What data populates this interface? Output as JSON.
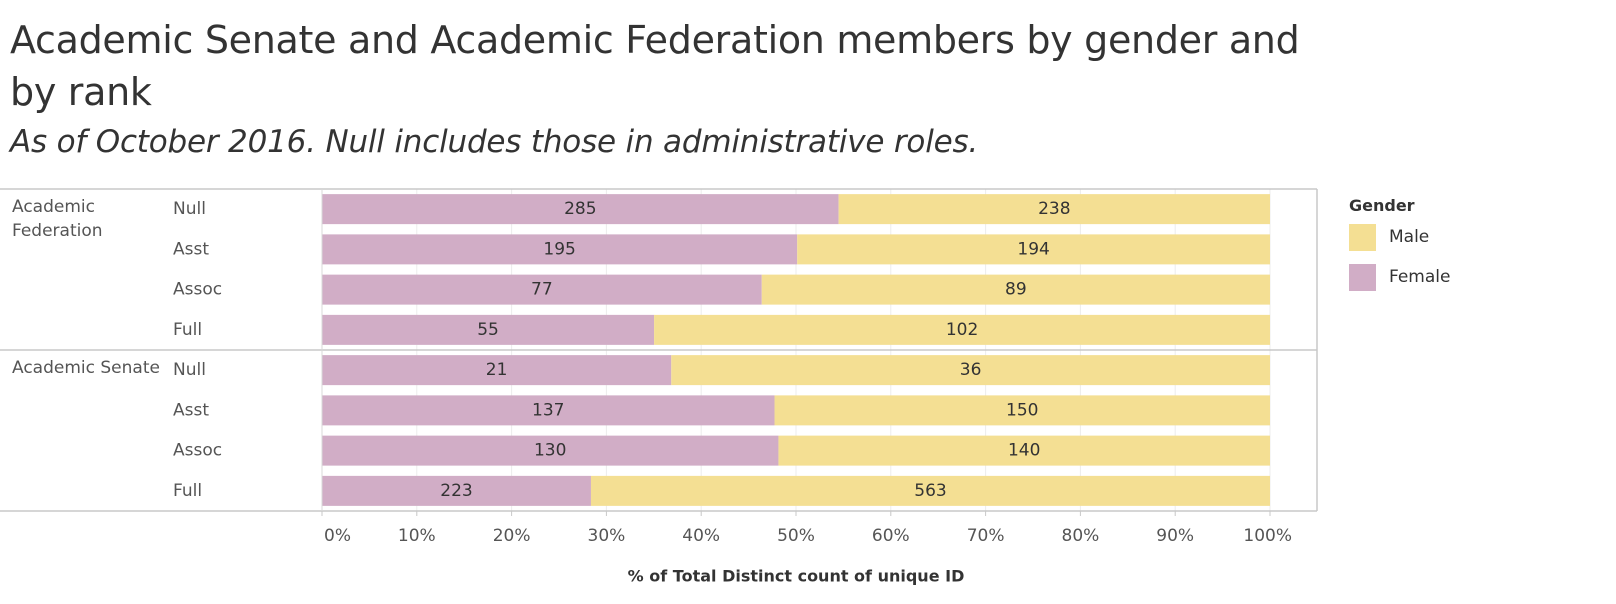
{
  "title": "Academic Senate and Academic Federation members by gender and by rank",
  "subtitle": "As of October 2016. Null includes those in administrative roles.",
  "colors": {
    "female": "#d1adc6",
    "male": "#f4df93",
    "text": "#333333",
    "grid": "#dddddd",
    "border": "#c8c8c8"
  },
  "legend": {
    "title": "Gender",
    "items": [
      {
        "label": "Male",
        "color": "#f4df93"
      },
      {
        "label": "Female",
        "color": "#d1adc6"
      }
    ]
  },
  "chart_data": {
    "type": "bar",
    "orientation": "horizontal",
    "stacked": "percent",
    "xlabel": "% of Total Distinct count of unique ID",
    "xlim": [
      0,
      100
    ],
    "x_ticks": [
      "0%",
      "10%",
      "20%",
      "30%",
      "40%",
      "50%",
      "60%",
      "70%",
      "80%",
      "90%",
      "100%"
    ],
    "series": [
      {
        "name": "Female",
        "key": "female"
      },
      {
        "name": "Male",
        "key": "male"
      }
    ],
    "groups": [
      {
        "name": "Academic Federation",
        "label_lines": [
          "Academic",
          "Federation"
        ],
        "rows": [
          {
            "rank": "Null",
            "female": 285,
            "male": 238
          },
          {
            "rank": "Asst",
            "female": 195,
            "male": 194
          },
          {
            "rank": "Assoc",
            "female": 77,
            "male": 89
          },
          {
            "rank": "Full",
            "female": 55,
            "male": 102
          }
        ]
      },
      {
        "name": "Academic Senate",
        "label_lines": [
          "Academic Senate"
        ],
        "rows": [
          {
            "rank": "Null",
            "female": 21,
            "male": 36
          },
          {
            "rank": "Asst",
            "female": 137,
            "male": 150
          },
          {
            "rank": "Assoc",
            "female": 130,
            "male": 140
          },
          {
            "rank": "Full",
            "female": 223,
            "male": 563
          }
        ]
      }
    ]
  }
}
